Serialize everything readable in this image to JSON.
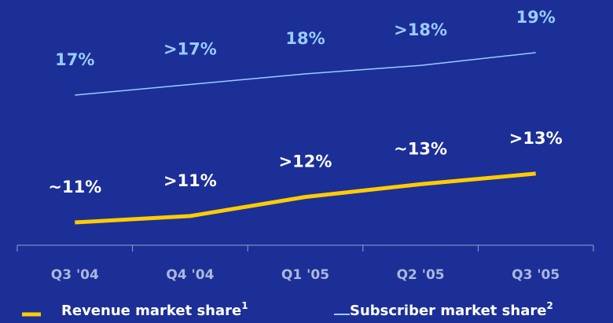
{
  "chart_data": {
    "type": "line",
    "categories": [
      "Q3 '04",
      "Q4 '04",
      "Q1 '05",
      "Q2 '05",
      "Q3 '05"
    ],
    "series": [
      {
        "name": "Revenue market share",
        "footnote": "1",
        "color": "#ffcc00",
        "label_color": "#ffffff",
        "values": [
          11,
          11.3,
          12.2,
          12.8,
          13.3
        ],
        "value_labels": [
          "~11%",
          ">11%",
          ">12%",
          "~13%",
          ">13%"
        ]
      },
      {
        "name": "Subscriber market share",
        "footnote": "2",
        "color": "#99ccff",
        "label_color": "#99ccff",
        "values": [
          17,
          17.5,
          18,
          18.4,
          19
        ],
        "value_labels": [
          "17%",
          ">17%",
          "18%",
          ">18%",
          "19%"
        ]
      }
    ],
    "ylim": [
      10,
      20
    ]
  }
}
